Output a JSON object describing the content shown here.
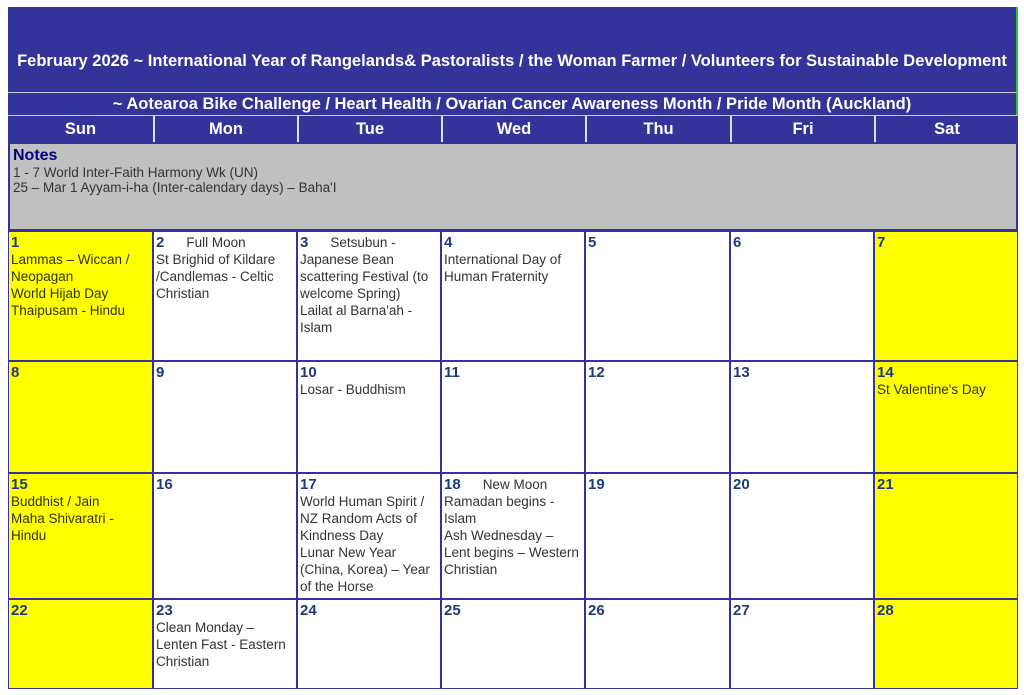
{
  "header": {
    "title": "February 2026     ~  International Year of Rangelands& Pastoralists / the Woman Farmer / Volunteers for Sustainable Development",
    "subtitle": "~ Aotearoa Bike Challenge / Heart Health / Ovarian Cancer Awareness  Month / Pride Month (Auckland)"
  },
  "weekdays": [
    "Sun",
    "Mon",
    "Tue",
    "Wed",
    "Thu",
    "Fri",
    "Sat"
  ],
  "notes": {
    "title": "Notes",
    "lines": [
      "1 - 7   World Inter-Faith Harmony Wk (UN)",
      "25 – Mar 1   Ayyam-i-ha (Inter-calendary days) – Baha'I"
    ]
  },
  "colors": {
    "header": "#333399",
    "weekend": "#ffff00",
    "notes": "#c0c0c0"
  },
  "weeks": [
    [
      {
        "day": "1",
        "events": [
          "Lammas – Wiccan / Neopagan",
          "World Hijab Day",
          "Thaipusam - Hindu"
        ]
      },
      {
        "day": "2",
        "inline": "Full Moon",
        "events": [
          "St Brighid of Kildare /Candlemas -  Celtic Christian"
        ]
      },
      {
        "day": "3",
        "inline": "Setsubun  -",
        "events": [
          "Japanese Bean scattering Festival (to welcome Spring)",
          "Lailat al Barna'ah  - Islam"
        ]
      },
      {
        "day": "4",
        "events": [
          "International Day of Human Fraternity"
        ]
      },
      {
        "day": "5",
        "events": []
      },
      {
        "day": "6",
        "events": []
      },
      {
        "day": "7",
        "events": []
      }
    ],
    [
      {
        "day": "8",
        "events": []
      },
      {
        "day": "9",
        "events": []
      },
      {
        "day": "10",
        "events": [
          "Losar  - Buddhism"
        ]
      },
      {
        "day": "11",
        "events": []
      },
      {
        "day": "12",
        "events": []
      },
      {
        "day": "13",
        "events": []
      },
      {
        "day": "14",
        "events": [
          "St Valentine's Day"
        ]
      }
    ],
    [
      {
        "day": "15",
        "events": [
          "Buddhist / Jain",
          "Maha Shivaratri  - Hindu"
        ]
      },
      {
        "day": "16",
        "events": []
      },
      {
        "day": "17",
        "events": [
          "World Human Spirit / NZ Random Acts of Kindness Day",
          "Lunar New Year (China, Korea) – Year of the Horse"
        ]
      },
      {
        "day": "18",
        "inline": "New Moon",
        "events": [
          "Ramadan begins  - Islam",
          "Ash Wednesday – Lent begins – Western Christian"
        ]
      },
      {
        "day": "19",
        "events": []
      },
      {
        "day": "20",
        "events": []
      },
      {
        "day": "21",
        "events": []
      }
    ],
    [
      {
        "day": "22",
        "events": []
      },
      {
        "day": "23",
        "events": [
          "Clean Monday – Lenten Fast  - Eastern Christian"
        ]
      },
      {
        "day": "24",
        "events": []
      },
      {
        "day": "25",
        "events": []
      },
      {
        "day": "26",
        "events": []
      },
      {
        "day": "27",
        "events": []
      },
      {
        "day": "28",
        "events": []
      }
    ]
  ]
}
